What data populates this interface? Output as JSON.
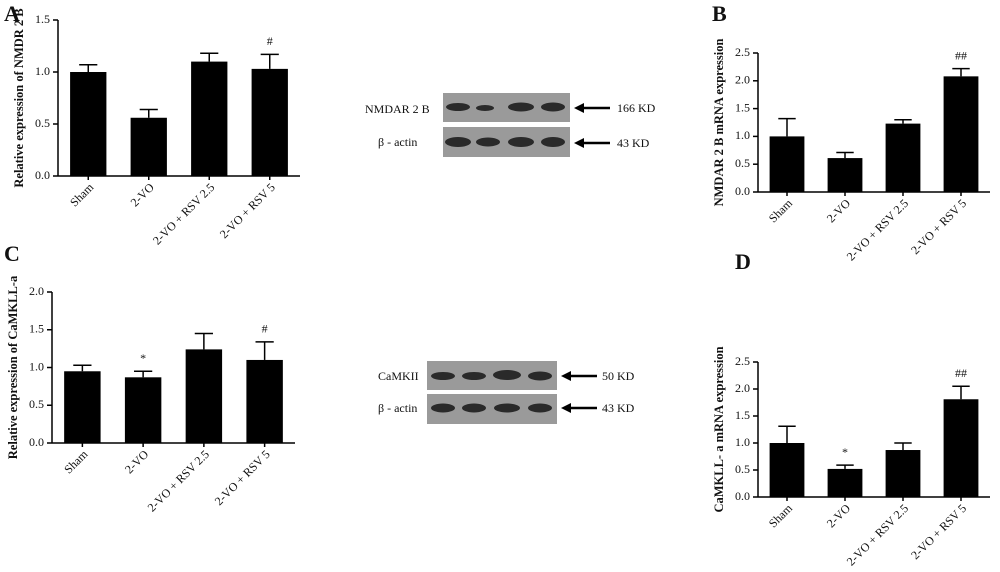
{
  "chart_data": [
    {
      "type": "bar",
      "panel": "A",
      "y_label": "Relative expression of NMDR 2 B",
      "categories": [
        "Sham",
        "2-VO",
        "2-VO + RSV 2.5",
        "2-VO + RSV 5"
      ],
      "values": [
        1.0,
        0.56,
        1.1,
        1.03
      ],
      "errors": [
        0.07,
        0.08,
        0.08,
        0.14
      ],
      "annotations": [
        null,
        null,
        null,
        "#"
      ],
      "color": "#000000",
      "ylim": [
        0,
        1.5
      ],
      "yticks": [
        {
          "value": 0,
          "label": "0.0"
        },
        0.5,
        {
          "value": 1,
          "label": "1.0"
        },
        1.5
      ]
    },
    {
      "type": "bar",
      "panel": "B",
      "y_label": "NMDAR 2 B mRNA expression",
      "categories": [
        "Sham",
        "2-VO",
        "2-VO + RSV 2.5",
        "2-VO + RSV 5"
      ],
      "values": [
        1.0,
        0.61,
        1.23,
        2.08
      ],
      "errors": [
        0.32,
        0.1,
        0.07,
        0.14
      ],
      "annotations": [
        null,
        null,
        null,
        "##"
      ],
      "color": "#000000",
      "ylim": [
        0,
        2.5
      ],
      "yticks": [
        {
          "value": 0,
          "label": "0.0"
        },
        0.5,
        {
          "value": 1,
          "label": "1.0"
        },
        1.5,
        {
          "value": 2,
          "label": "2.0"
        },
        2.5
      ]
    },
    {
      "type": "bar",
      "panel": "C",
      "y_label": "Relative expression of CaMKLL-a",
      "categories": [
        "Sham",
        "2-VO",
        "2-VO + RSV 2.5",
        "2-VO + RSV 5"
      ],
      "values": [
        0.95,
        0.87,
        1.24,
        1.1
      ],
      "errors": [
        0.08,
        0.08,
        0.21,
        0.24
      ],
      "annotations": [
        null,
        "*",
        null,
        "#"
      ],
      "color": "#000000",
      "ylim": [
        0,
        2
      ],
      "yticks": [
        {
          "value": 0,
          "label": "0.0"
        },
        0.5,
        {
          "value": 1,
          "label": "1.0"
        },
        1.5,
        {
          "value": 2,
          "label": "2.0"
        }
      ]
    },
    {
      "type": "bar",
      "panel": "D",
      "y_label": "CaMKLL- a mRNA expression",
      "categories": [
        "Sham",
        "2-VO",
        "2-VO + RSV 2.5",
        "2-VO + RSV 5"
      ],
      "values": [
        1.0,
        0.52,
        0.87,
        1.81
      ],
      "errors": [
        0.31,
        0.07,
        0.13,
        0.24
      ],
      "annotations": [
        null,
        "*",
        null,
        "##"
      ],
      "color": "#000000",
      "ylim": [
        0,
        2.5
      ],
      "yticks": [
        {
          "value": 0,
          "label": "0.0"
        },
        0.5,
        {
          "value": 1,
          "label": "1.0"
        },
        1.5,
        {
          "value": 2,
          "label": "2.0"
        },
        2.5
      ]
    }
  ],
  "blots": [
    {
      "rows": [
        {
          "label": "NMDAR 2 B",
          "size": "166 KD"
        },
        {
          "label": "β - actin",
          "size": "43 KD"
        }
      ]
    },
    {
      "rows": [
        {
          "label": "CaMKII",
          "size": "50 KD"
        },
        {
          "label": "β - actin",
          "size": "43 KD"
        }
      ]
    }
  ]
}
